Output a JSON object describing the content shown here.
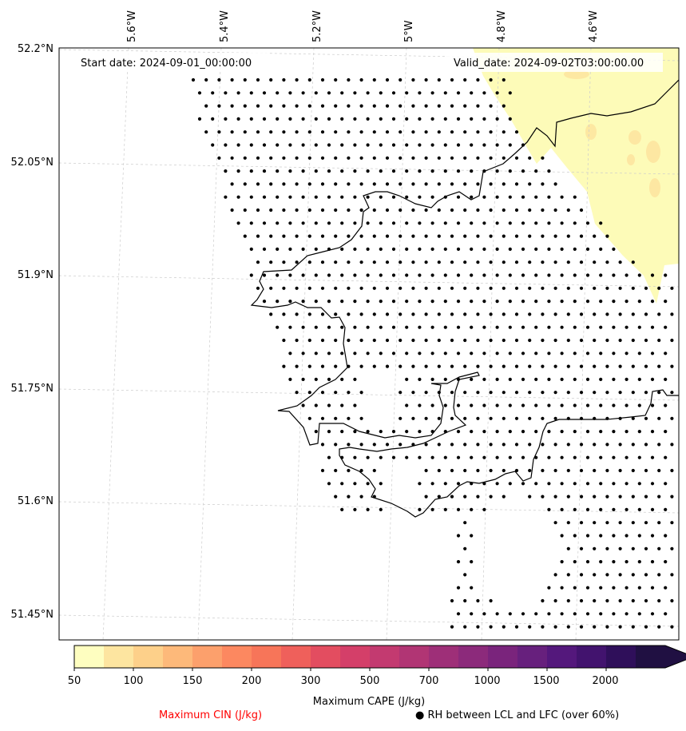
{
  "map": {
    "start_label": "Start date: 2024-09-01_00:00:00",
    "valid_label": "Valid_date: 2024-09-02T03:00:00.00",
    "lon_labels": [
      "5.6°W",
      "5.4°W",
      "5.2°W",
      "5°W",
      "4.8°W",
      "4.6°W"
    ],
    "lat_labels": [
      "52.2°N",
      "52.05°N",
      "51.9°N",
      "51.75°N",
      "51.6°N",
      "51.45°N"
    ]
  },
  "colorbar": {
    "title": "Maximum CAPE (J/kg)",
    "tick_labels": [
      "50",
      "100",
      "150",
      "200",
      "300",
      "500",
      "700",
      "1000",
      "1500",
      "2000"
    ],
    "colors": [
      "#fefec0",
      "#fde5a0",
      "#fdd08a",
      "#fdb97a",
      "#fca06c",
      "#fc8860",
      "#f77559",
      "#ef605b",
      "#e34d60",
      "#d43f69",
      "#c33a70",
      "#b13574",
      "#9e2f78",
      "#8c2a7b",
      "#7a247c",
      "#67207d",
      "#54187c",
      "#42136e",
      "#2f0f5a",
      "#201042"
    ]
  },
  "legend": {
    "cin_label": "Maximum CIN (J/kg)",
    "cin_color": "#ff0000",
    "rh_label": "RH between LCL and LFC (over 60%)"
  }
}
